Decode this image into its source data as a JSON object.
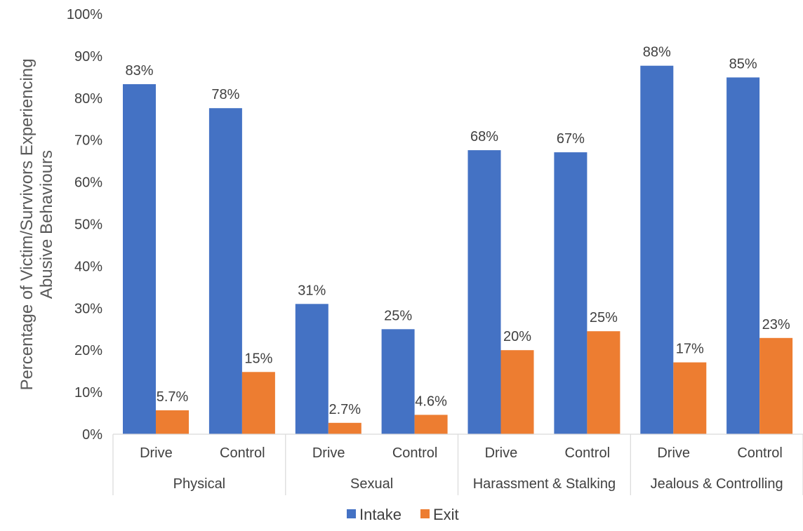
{
  "chart_data": {
    "type": "bar",
    "ylabel_lines": [
      "Percentage of Victim/Survivors Experiencing",
      "Abusive Behaviours"
    ],
    "ylim": [
      0,
      100
    ],
    "yticks": [
      0,
      10,
      20,
      30,
      40,
      50,
      60,
      70,
      80,
      90,
      100
    ],
    "ytick_labels": [
      "0%",
      "10%",
      "20%",
      "30%",
      "40%",
      "50%",
      "60%",
      "70%",
      "80%",
      "90%",
      "100%"
    ],
    "groups": [
      "Physical",
      "Sexual",
      "Harassment & Stalking",
      "Jealous & Controlling"
    ],
    "categories": [
      "Drive",
      "Control",
      "Drive",
      "Control",
      "Drive",
      "Control",
      "Drive",
      "Control"
    ],
    "series": [
      {
        "name": "Intake",
        "color": "#4472C4",
        "values": [
          83.3,
          77.6,
          31.0,
          25.0,
          67.6,
          67.1,
          87.7,
          84.9
        ],
        "labels": [
          "83%",
          "78%",
          "31%",
          "25%",
          "68%",
          "67%",
          "88%",
          "85%"
        ]
      },
      {
        "name": "Exit",
        "color": "#ED7D31",
        "values": [
          5.7,
          14.8,
          2.7,
          4.6,
          20.0,
          24.5,
          17.1,
          22.9
        ],
        "labels": [
          "5.7%",
          "15%",
          "2.7%",
          "4.6%",
          "20%",
          "25%",
          "17%",
          "23%"
        ]
      }
    ],
    "grid": false,
    "legend_position": "bottom"
  }
}
